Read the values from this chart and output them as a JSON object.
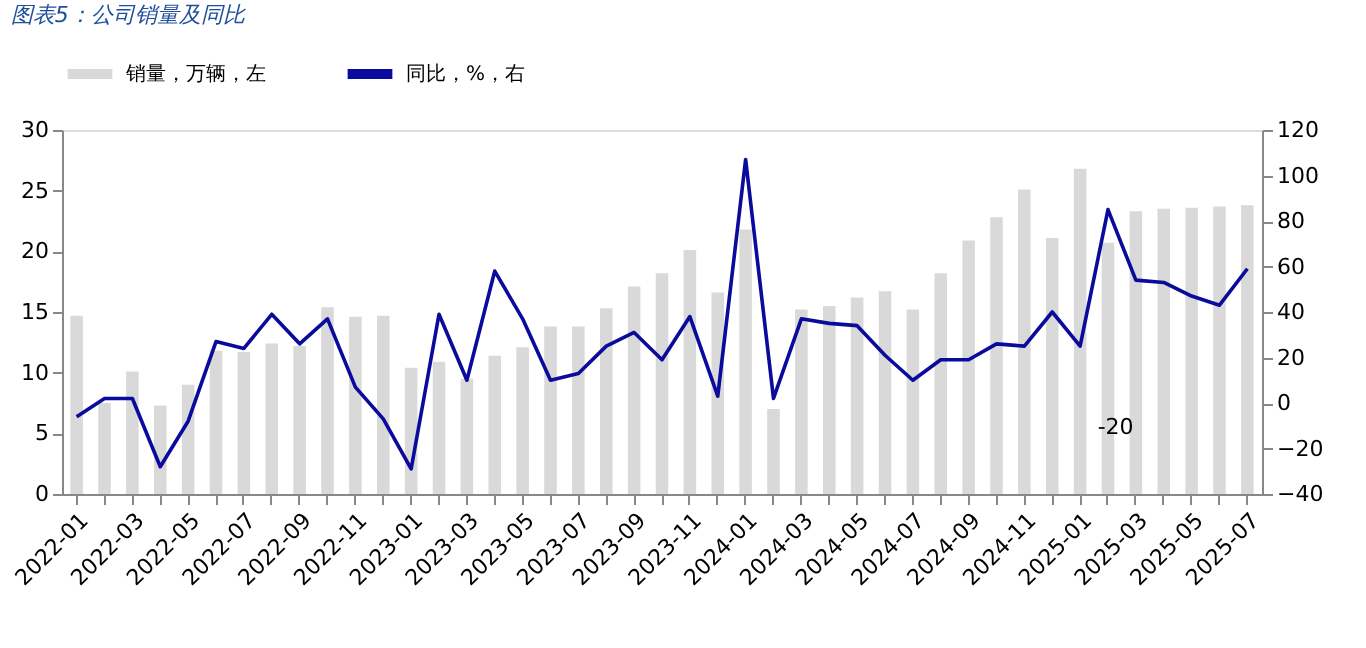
{
  "chart_data": {
    "type": "bar",
    "title": "图表5：公司销量及同比",
    "categories": [
      "2022-01",
      null,
      "2022-03",
      null,
      "2022-05",
      null,
      "2022-07",
      null,
      "2022-09",
      null,
      "2022-11",
      null,
      "2023-01",
      null,
      "2023-03",
      null,
      "2023-05",
      null,
      "2023-07",
      null,
      "2023-09",
      null,
      "2023-11",
      null,
      "2024-01",
      null,
      "2024-03",
      null,
      "2024-05",
      null,
      "2024-07",
      null,
      "2024-09",
      null,
      "2024-11",
      null,
      "2025-01",
      null,
      "2025-03",
      null,
      "2025-05",
      null,
      "2025-07"
    ],
    "series": [
      {
        "name": "销量，万辆，左",
        "color": "#d9d9d9",
        "values": [
          14.7,
          7.5,
          10.1,
          7.3,
          9.0,
          11.8,
          11.7,
          12.4,
          12.2,
          15.4,
          14.6,
          14.7,
          10.4,
          10.9,
          9.5,
          11.4,
          12.1,
          13.8,
          13.8,
          15.3,
          17.1,
          18.2,
          20.1,
          16.6,
          21.8,
          7,
          15.2,
          15.5,
          16.2,
          16.7,
          15.2,
          18.2,
          20.9,
          22.8,
          25.1,
          21.1,
          26.8,
          20.7,
          23.3,
          23.5,
          23.6,
          23.7,
          23.8
        ]
      },
      {
        "name": "同比，%，右",
        "type": "line",
        "axis": "y2",
        "color": "#0a0a9c",
        "values": [
          -6,
          2,
          2,
          -28,
          -8,
          27,
          24,
          39,
          26,
          37,
          7,
          -7,
          -29,
          39,
          10,
          58,
          37,
          10,
          13,
          25,
          31,
          19,
          38,
          3,
          107,
          2,
          37,
          35,
          34,
          21,
          10,
          19,
          19,
          26,
          25,
          40,
          25,
          85,
          54,
          53,
          47,
          43,
          59
        ]
      }
    ],
    "ylim": [
      0,
      30
    ],
    "yticks": [
      0,
      5,
      10,
      15,
      20,
      25,
      30
    ],
    "y2lim": [
      -40,
      120
    ],
    "y2ticks": [
      -40,
      -20,
      0,
      20,
      40,
      60,
      80,
      100,
      120
    ],
    "grid": false,
    "legend": "top",
    "annotations": [
      "-20"
    ]
  }
}
